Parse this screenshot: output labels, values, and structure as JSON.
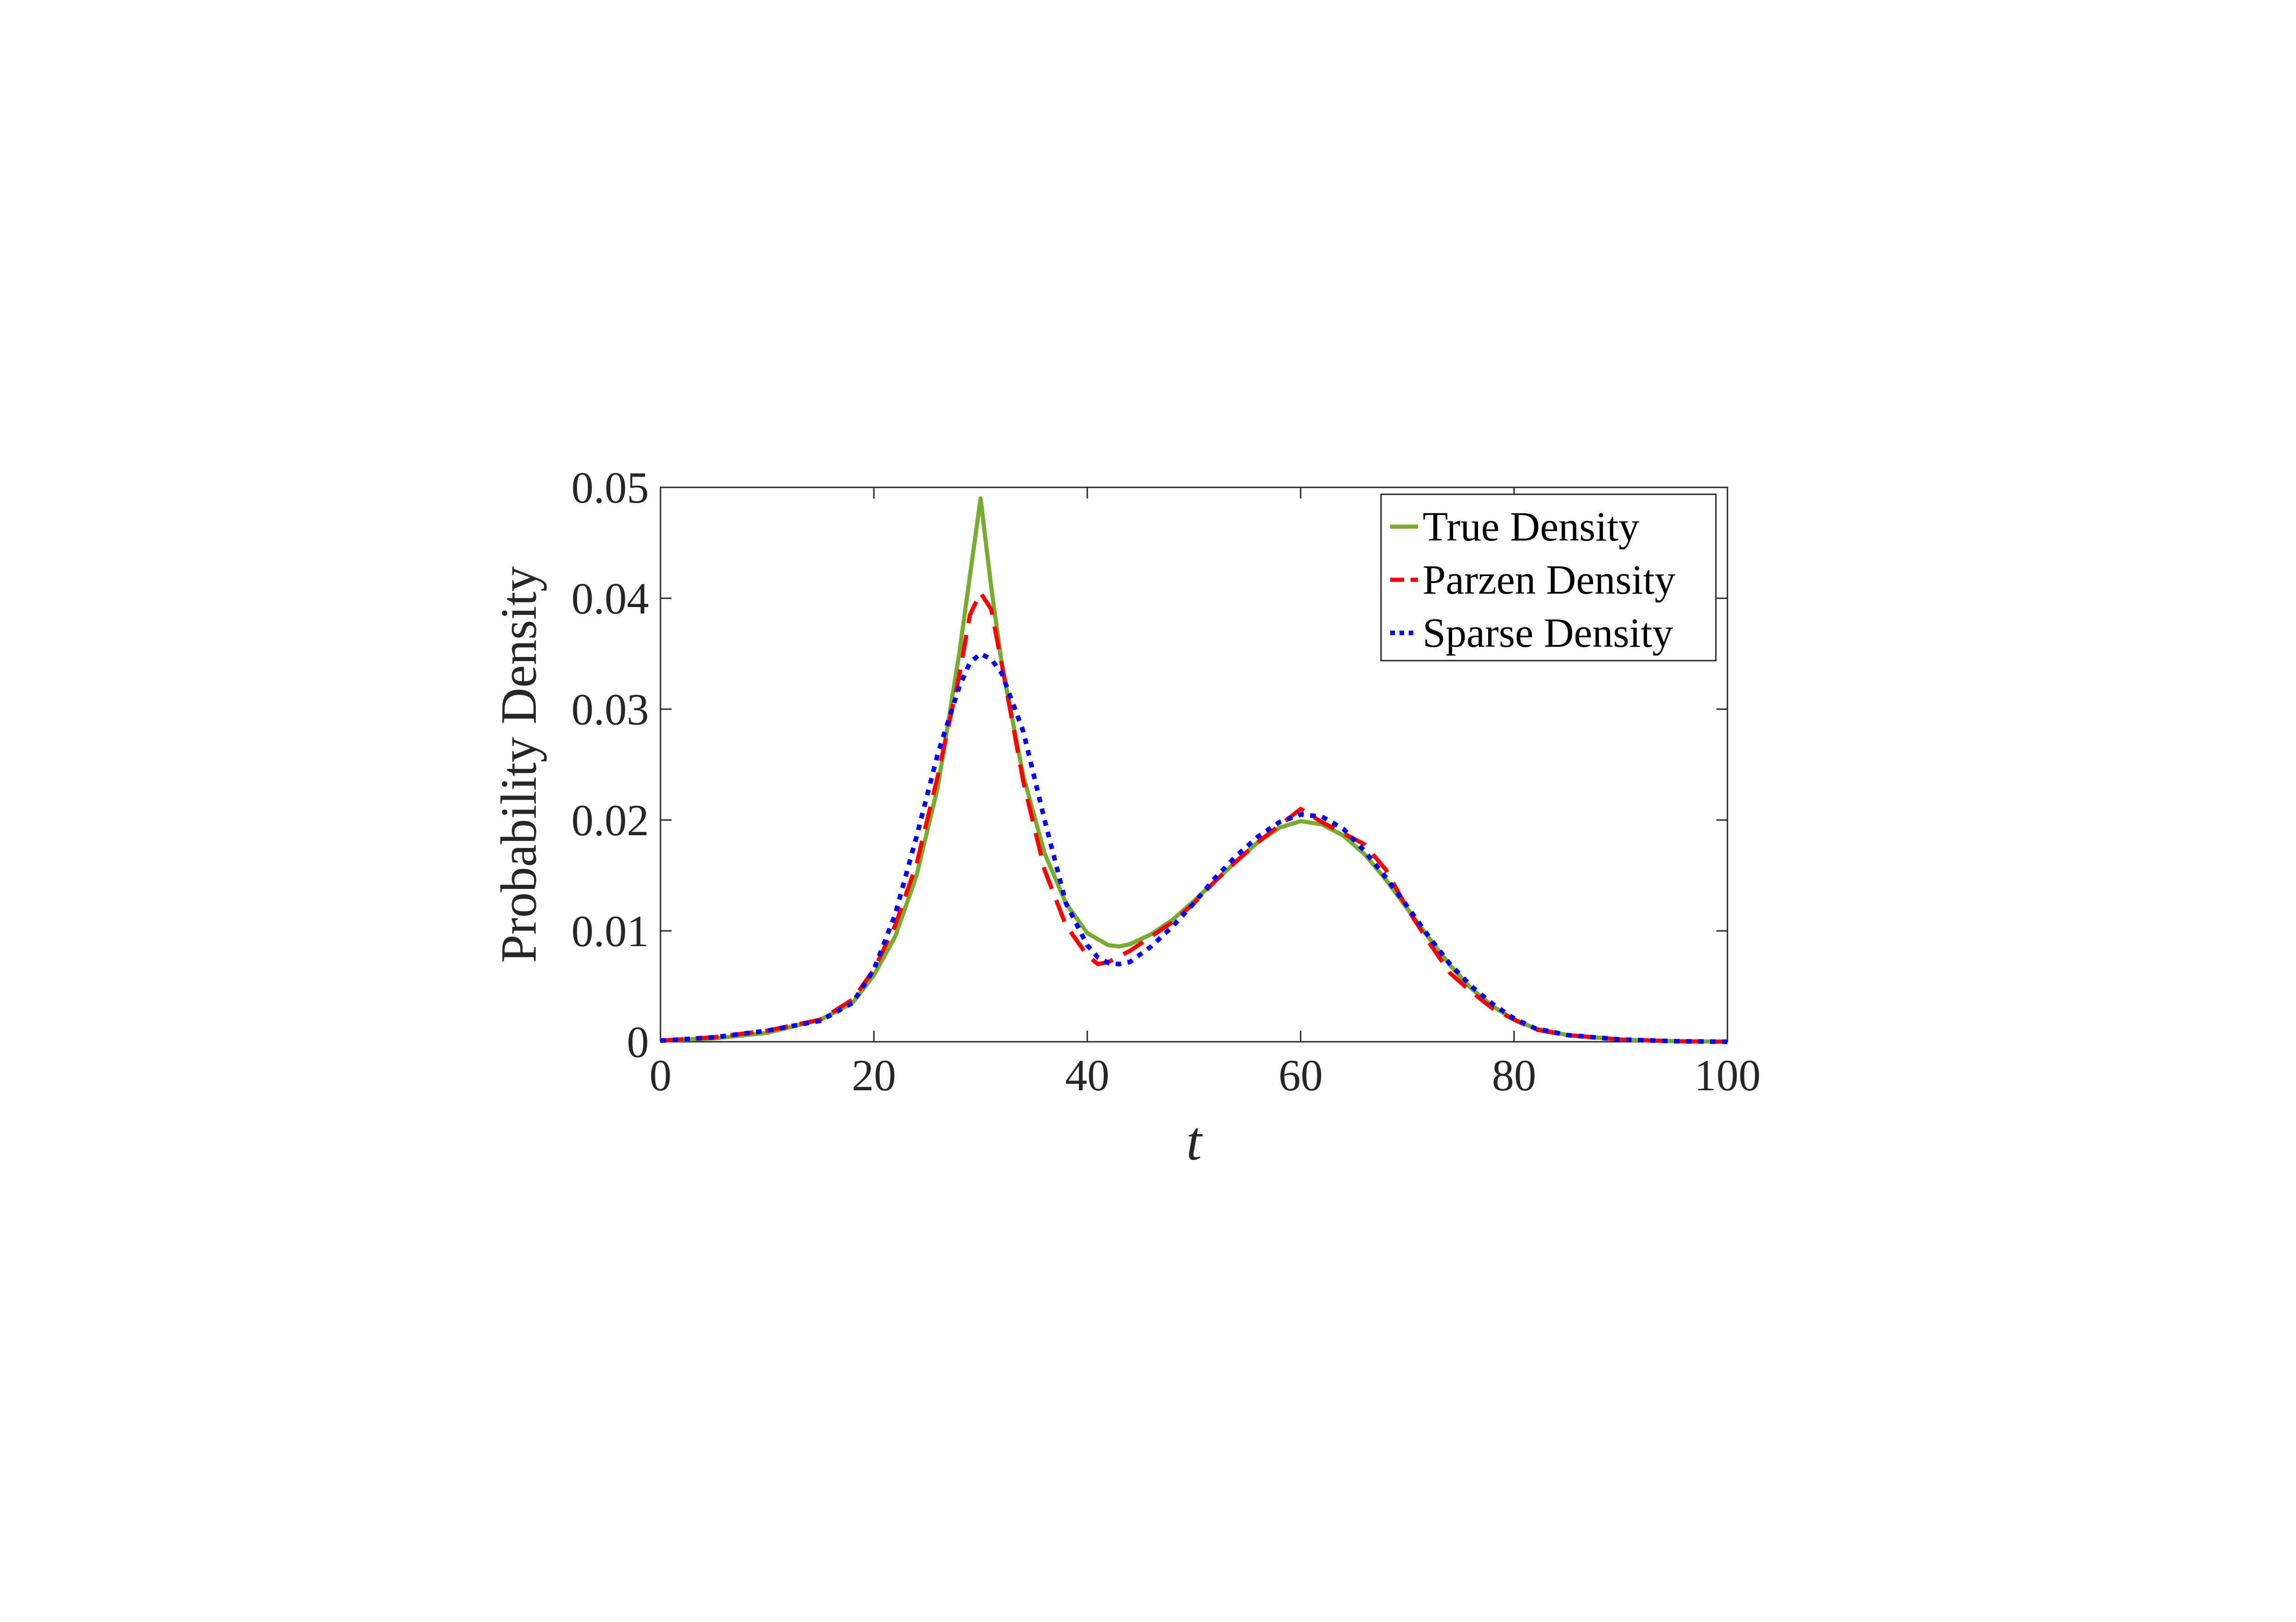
{
  "chart_data": {
    "type": "line",
    "xlabel": "t",
    "ylabel": "Probability Density",
    "xlim": [
      0,
      100
    ],
    "ylim": [
      0,
      0.05
    ],
    "xticks": [
      "0",
      "20",
      "40",
      "60",
      "80",
      "100"
    ],
    "yticks": [
      "0",
      "0.01",
      "0.02",
      "0.03",
      "0.04",
      "0.05"
    ],
    "grid": false,
    "legend_position": "top-right",
    "series": [
      {
        "name": "True Density",
        "color": "#77ac30",
        "style": "solid",
        "x": [
          0,
          5,
          10,
          15,
          18,
          20,
          22,
          24,
          26,
          28,
          29,
          30,
          31,
          32,
          34,
          36,
          38,
          40,
          42,
          43,
          44,
          46,
          48,
          50,
          52,
          54,
          56,
          58,
          60,
          62,
          64,
          66,
          68,
          70,
          72,
          74,
          76,
          78,
          80,
          82,
          85,
          90,
          95,
          100
        ],
        "y": [
          0.0001,
          0.0003,
          0.0008,
          0.002,
          0.0035,
          0.006,
          0.0095,
          0.015,
          0.023,
          0.035,
          0.042,
          0.049,
          0.041,
          0.034,
          0.024,
          0.017,
          0.0125,
          0.0098,
          0.0087,
          0.0086,
          0.0088,
          0.0097,
          0.011,
          0.0127,
          0.0145,
          0.0163,
          0.018,
          0.0193,
          0.0199,
          0.0196,
          0.0186,
          0.0169,
          0.0146,
          0.012,
          0.0094,
          0.0069,
          0.0048,
          0.0032,
          0.002,
          0.0012,
          0.0006,
          0.0002,
          5e-05,
          0.0
        ]
      },
      {
        "name": "Parzen Density",
        "color": "#ff0000",
        "style": "dashed",
        "x": [
          0,
          5,
          10,
          15,
          18,
          20,
          22,
          24,
          26,
          28,
          29,
          30,
          31,
          32,
          34,
          36,
          38,
          40,
          41,
          42,
          44,
          46,
          48,
          50,
          52,
          54,
          56,
          58,
          60,
          62,
          64,
          66,
          68,
          70,
          72,
          74,
          76,
          78,
          80,
          82,
          85,
          90,
          95,
          100
        ],
        "y": [
          0.0001,
          0.0004,
          0.001,
          0.002,
          0.0038,
          0.0065,
          0.0105,
          0.016,
          0.024,
          0.033,
          0.0385,
          0.0405,
          0.039,
          0.034,
          0.0235,
          0.0155,
          0.0105,
          0.0078,
          0.007,
          0.0072,
          0.0082,
          0.0095,
          0.0108,
          0.0125,
          0.0145,
          0.0163,
          0.018,
          0.0195,
          0.021,
          0.0198,
          0.0188,
          0.0178,
          0.0155,
          0.012,
          0.009,
          0.0062,
          0.0045,
          0.003,
          0.002,
          0.0011,
          0.0006,
          0.0002,
          5e-05,
          0.0
        ]
      },
      {
        "name": "Sparse Density",
        "color": "#0000ff",
        "style": "dotted",
        "x": [
          0,
          5,
          10,
          15,
          18,
          20,
          22,
          24,
          26,
          28,
          29,
          30,
          31,
          32,
          34,
          36,
          38,
          40,
          41,
          42,
          43,
          44,
          46,
          48,
          50,
          52,
          54,
          56,
          58,
          60,
          62,
          64,
          66,
          68,
          70,
          72,
          74,
          76,
          78,
          80,
          82,
          85,
          90,
          95,
          100
        ],
        "y": [
          0.0001,
          0.0004,
          0.001,
          0.0019,
          0.0035,
          0.0065,
          0.0115,
          0.0185,
          0.026,
          0.032,
          0.0342,
          0.035,
          0.0345,
          0.0332,
          0.028,
          0.02,
          0.0125,
          0.0087,
          0.0076,
          0.0071,
          0.007,
          0.0072,
          0.0086,
          0.0104,
          0.0125,
          0.0148,
          0.0168,
          0.0185,
          0.0198,
          0.0205,
          0.0203,
          0.0192,
          0.0172,
          0.0148,
          0.0122,
          0.0095,
          0.007,
          0.005,
          0.0034,
          0.0021,
          0.0012,
          0.0006,
          0.0002,
          5e-05,
          0.0
        ]
      }
    ]
  }
}
